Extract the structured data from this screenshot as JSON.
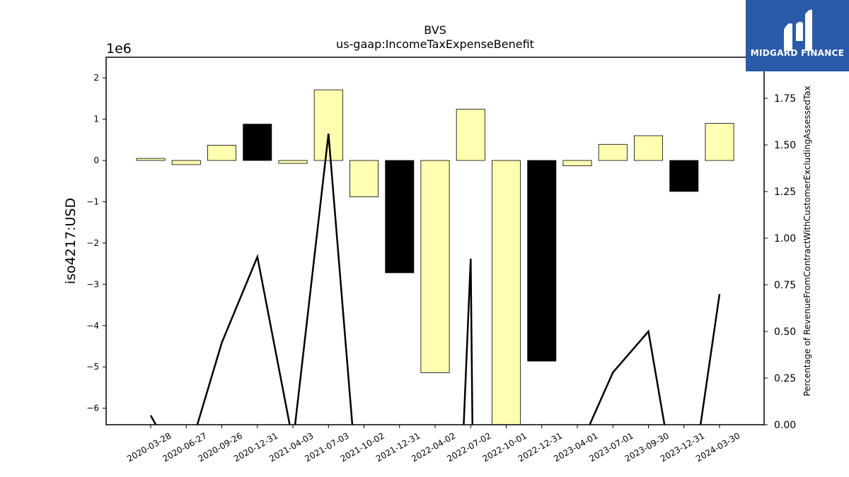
{
  "chart_data": {
    "type": "bar",
    "title": "BVS",
    "subtitle": "us-gaap:IncomeTaxExpenseBenefit",
    "ylabel": "iso4217:USD",
    "y_offset_label": "1e6",
    "y2label": "Percentage of RevenueFromContractWithCustomerExcludingAssessedTax",
    "ylim": [
      -6.4,
      2.5
    ],
    "y2lim": [
      0,
      1.97
    ],
    "yticks": [
      2,
      1,
      0,
      -1,
      -2,
      -3,
      -4,
      -5,
      -6
    ],
    "y2ticks": [
      "0.00",
      "0.25",
      "0.50",
      "0.75",
      "1.00",
      "1.25",
      "1.50",
      "1.75"
    ],
    "categories": [
      "2020-03-28",
      "2020-06-27",
      "2020-09-26",
      "2020-12-31",
      "2021-04-03",
      "2021-07-03",
      "2021-10-02",
      "2021-12-31",
      "2022-04-02",
      "2022-07-02",
      "2022-10-01",
      "2022-12-31",
      "2023-04-01",
      "2023-07-01",
      "2023-09-30",
      "2023-12-31",
      "2024-03-30"
    ],
    "series": [
      {
        "values": [
          0.05,
          -0.1,
          0.37,
          0.88,
          -0.07,
          1.71,
          -0.88,
          -2.72,
          -5.14,
          1.24,
          -6.45,
          -4.86,
          -0.13,
          0.39,
          0.6,
          -0.75,
          0.9
        ],
        "colors": [
          "#ffffb2",
          "#ffffb2",
          "#ffffb2",
          "#000000",
          "#ffffb2",
          "#ffffb2",
          "#ffffb2",
          "#000000",
          "#ffffb2",
          "#ffffb2",
          "#ffffb2",
          "#000000",
          "#ffffb2",
          "#ffffb2",
          "#ffffb2",
          "#000000",
          "#ffffb2"
        ]
      },
      {
        "axis": "right",
        "type": "line",
        "points": [
          [
            0,
            0.05
          ],
          [
            0.2,
            -0.02
          ],
          [
            1.28,
            -0.02
          ],
          [
            2,
            0.44
          ],
          [
            3,
            0.9
          ],
          [
            3.93,
            -0.02
          ],
          [
            4.05,
            -0.02
          ],
          [
            5,
            1.56
          ],
          [
            5.68,
            -0.02
          ],
          [
            7.5,
            -0.02
          ],
          [
            8.8,
            -0.02
          ],
          [
            9,
            0.89
          ],
          [
            9.05,
            -0.02
          ],
          [
            10,
            -0.02
          ],
          [
            12.3,
            -0.02
          ],
          [
            13,
            0.28
          ],
          [
            14,
            0.5
          ],
          [
            14.47,
            -0.02
          ],
          [
            15.45,
            -0.02
          ],
          [
            16,
            0.7
          ]
        ]
      }
    ]
  },
  "logo": {
    "text": "MIDGARD FINANCE"
  }
}
